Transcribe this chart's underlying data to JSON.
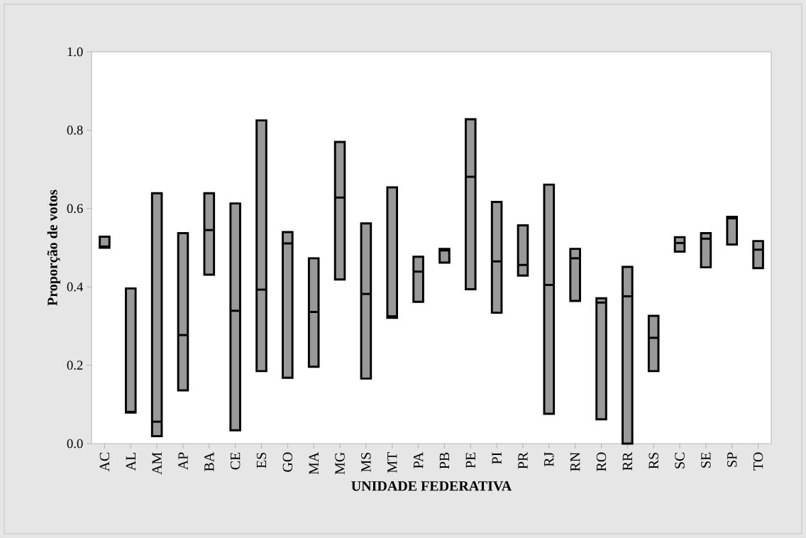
{
  "chart_data": {
    "type": "box",
    "xlabel": "UNIDADE FEDERATIVA",
    "ylabel": "Proporção de votos",
    "categories": [
      "AC",
      "AL",
      "AM",
      "AP",
      "BA",
      "CE",
      "ES",
      "GO",
      "MA",
      "MG",
      "MS",
      "MT",
      "PA",
      "PB",
      "PE",
      "PI",
      "PR",
      "RJ",
      "RN",
      "RO",
      "RR",
      "RS",
      "SC",
      "SE",
      "SP",
      "TO"
    ],
    "color": "#999999",
    "ylim": [
      0,
      1
    ],
    "yticks": [
      {
        "value": 0,
        "label": "0.0"
      },
      {
        "value": 0.2,
        "label": "0.2"
      },
      {
        "value": 0.4,
        "label": "0.4"
      },
      {
        "value": 0.6,
        "label": "0.6"
      },
      {
        "value": 0.8,
        "label": "0.8"
      },
      {
        "value": 1,
        "label": "1.0"
      }
    ],
    "boxes": [
      {
        "low": 0.5,
        "q1": 0.5,
        "median": 0.503,
        "q3": 0.528,
        "high": 0.528
      },
      {
        "low": 0.079,
        "q1": 0.079,
        "median": 0.081,
        "q3": 0.396,
        "high": 0.396
      },
      {
        "low": 0.019,
        "q1": 0.019,
        "median": 0.056,
        "q3": 0.639,
        "high": 0.639
      },
      {
        "low": 0.136,
        "q1": 0.136,
        "median": 0.277,
        "q3": 0.537,
        "high": 0.537
      },
      {
        "low": 0.431,
        "q1": 0.431,
        "median": 0.545,
        "q3": 0.639,
        "high": 0.639
      },
      {
        "low": 0.034,
        "q1": 0.034,
        "median": 0.339,
        "q3": 0.613,
        "high": 0.613
      },
      {
        "low": 0.185,
        "q1": 0.185,
        "median": 0.393,
        "q3": 0.825,
        "high": 0.825
      },
      {
        "low": 0.168,
        "q1": 0.168,
        "median": 0.511,
        "q3": 0.54,
        "high": 0.54
      },
      {
        "low": 0.196,
        "q1": 0.196,
        "median": 0.336,
        "q3": 0.473,
        "high": 0.473
      },
      {
        "low": 0.419,
        "q1": 0.419,
        "median": 0.628,
        "q3": 0.77,
        "high": 0.77
      },
      {
        "low": 0.166,
        "q1": 0.166,
        "median": 0.382,
        "q3": 0.562,
        "high": 0.562
      },
      {
        "low": 0.321,
        "q1": 0.321,
        "median": 0.325,
        "q3": 0.654,
        "high": 0.654
      },
      {
        "low": 0.362,
        "q1": 0.362,
        "median": 0.439,
        "q3": 0.477,
        "high": 0.477
      },
      {
        "low": 0.462,
        "q1": 0.462,
        "median": 0.493,
        "q3": 0.497,
        "high": 0.497
      },
      {
        "low": 0.394,
        "q1": 0.394,
        "median": 0.681,
        "q3": 0.828,
        "high": 0.828
      },
      {
        "low": 0.334,
        "q1": 0.334,
        "median": 0.465,
        "q3": 0.617,
        "high": 0.617
      },
      {
        "low": 0.429,
        "q1": 0.429,
        "median": 0.456,
        "q3": 0.557,
        "high": 0.557
      },
      {
        "low": 0.076,
        "q1": 0.076,
        "median": 0.405,
        "q3": 0.661,
        "high": 0.661
      },
      {
        "low": 0.364,
        "q1": 0.364,
        "median": 0.473,
        "q3": 0.497,
        "high": 0.497
      },
      {
        "low": 0.062,
        "q1": 0.062,
        "median": 0.36,
        "q3": 0.371,
        "high": 0.371
      },
      {
        "low": 0,
        "q1": 0,
        "median": 0.376,
        "q3": 0.451,
        "high": 0.451
      },
      {
        "low": 0.185,
        "q1": 0.185,
        "median": 0.27,
        "q3": 0.326,
        "high": 0.326
      },
      {
        "low": 0.49,
        "q1": 0.49,
        "median": 0.512,
        "q3": 0.527,
        "high": 0.527
      },
      {
        "low": 0.45,
        "q1": 0.45,
        "median": 0.523,
        "q3": 0.537,
        "high": 0.537
      },
      {
        "low": 0.508,
        "q1": 0.508,
        "median": 0.575,
        "q3": 0.579,
        "high": 0.579
      },
      {
        "low": 0.448,
        "q1": 0.448,
        "median": 0.495,
        "q3": 0.517,
        "high": 0.517
      }
    ]
  }
}
